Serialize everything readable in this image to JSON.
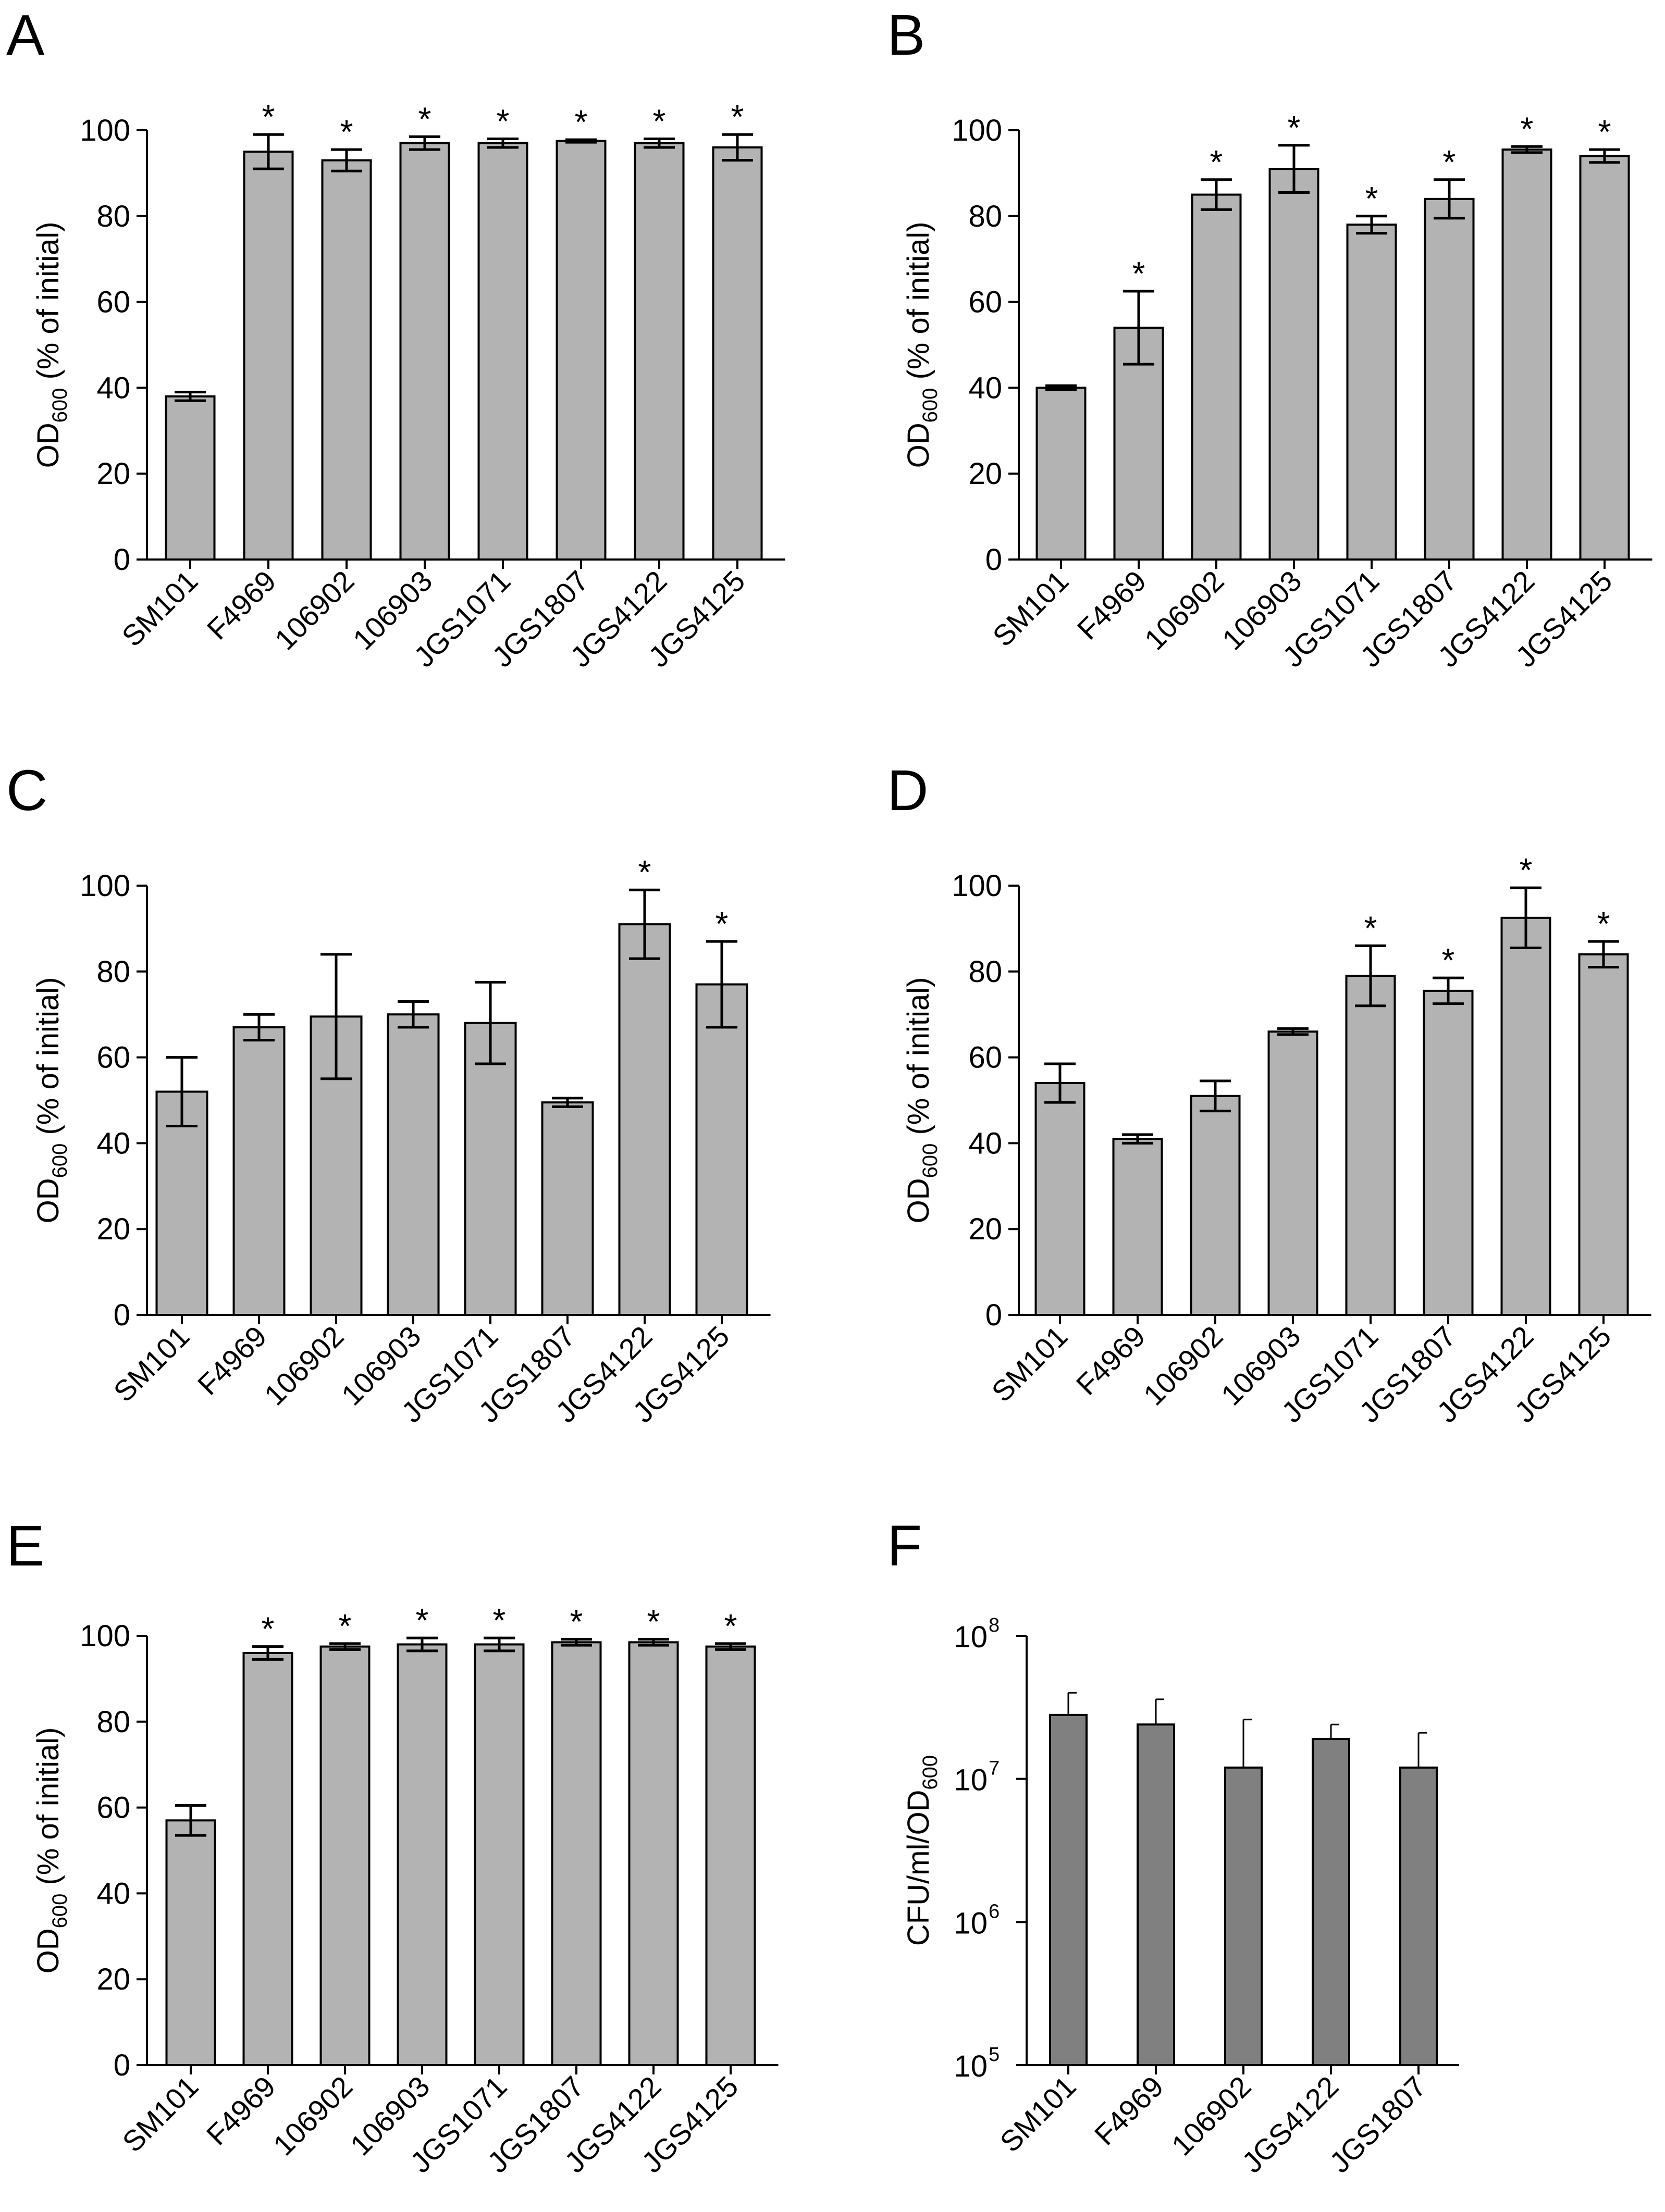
{
  "chart_data": [
    {
      "panel": "A",
      "type": "bar",
      "ylabel_main": "OD",
      "ylabel_sub": "600",
      "ylabel_rest": " (% of initial)",
      "ylim": [
        0,
        100
      ],
      "yticks": [
        0,
        20,
        40,
        60,
        80,
        100
      ],
      "categories": [
        "SM101",
        "F4969",
        "106902",
        "106903",
        "JGS1071",
        "JGS1807",
        "JGS4122",
        "JGS4125"
      ],
      "values": [
        38,
        95,
        93,
        97,
        97,
        97.5,
        97,
        96
      ],
      "errors": [
        1,
        4,
        2.5,
        1.5,
        1,
        0.3,
        1,
        3
      ],
      "significant": [
        false,
        true,
        true,
        true,
        true,
        true,
        true,
        true
      ],
      "marker": "*",
      "bar_color": "#b3b3b3"
    },
    {
      "panel": "B",
      "type": "bar",
      "ylabel_main": "OD",
      "ylabel_sub": "600",
      "ylabel_rest": " (% of initial)",
      "ylim": [
        0,
        100
      ],
      "yticks": [
        0,
        20,
        40,
        60,
        80,
        100
      ],
      "categories": [
        "SM101",
        "F4969",
        "106902",
        "106903",
        "JGS1071",
        "JGS1807",
        "JGS4122",
        "JGS4125"
      ],
      "values": [
        40,
        54,
        85,
        91,
        78,
        84,
        95.5,
        94
      ],
      "errors": [
        0.5,
        8.5,
        3.5,
        5.5,
        2,
        4.5,
        0.7,
        1.5
      ],
      "significant": [
        false,
        true,
        true,
        true,
        true,
        true,
        true,
        true
      ],
      "marker": "*",
      "bar_color": "#b3b3b3"
    },
    {
      "panel": "C",
      "type": "bar",
      "ylabel_main": "OD",
      "ylabel_sub": "600",
      "ylabel_rest": " (% of initial)",
      "ylim": [
        0,
        100
      ],
      "yticks": [
        0,
        20,
        40,
        60,
        80,
        100
      ],
      "categories": [
        "SM101",
        "F4969",
        "106902",
        "106903",
        "JGS1071",
        "JGS1807",
        "JGS4122",
        "JGS4125"
      ],
      "values": [
        52,
        67,
        69.5,
        70,
        68,
        49.5,
        91,
        77
      ],
      "errors": [
        8,
        3,
        14.5,
        3,
        9.5,
        1,
        8,
        10
      ],
      "significant": [
        false,
        false,
        false,
        false,
        false,
        false,
        true,
        true
      ],
      "marker": "*",
      "bar_color": "#b3b3b3"
    },
    {
      "panel": "D",
      "type": "bar",
      "ylabel_main": "OD",
      "ylabel_sub": "600",
      "ylabel_rest": " (% of initial)",
      "ylim": [
        0,
        100
      ],
      "yticks": [
        0,
        20,
        40,
        60,
        80,
        100
      ],
      "categories": [
        "SM101",
        "F4969",
        "106902",
        "106903",
        "JGS1071",
        "JGS1807",
        "JGS4122",
        "JGS4125"
      ],
      "values": [
        54,
        41,
        51,
        66,
        79,
        75.5,
        92.5,
        84
      ],
      "errors": [
        4.5,
        1,
        3.5,
        0.7,
        7,
        3,
        7,
        3
      ],
      "significant": [
        false,
        false,
        false,
        false,
        true,
        true,
        true,
        true
      ],
      "marker": "*",
      "bar_color": "#b3b3b3"
    },
    {
      "panel": "E",
      "type": "bar",
      "ylabel_main": "OD",
      "ylabel_sub": "600",
      "ylabel_rest": " (% of initial)",
      "ylim": [
        0,
        100
      ],
      "yticks": [
        0,
        20,
        40,
        60,
        80,
        100
      ],
      "categories": [
        "SM101",
        "F4969",
        "106902",
        "106903",
        "JGS1071",
        "JGS1807",
        "JGS4122",
        "JGS4125"
      ],
      "values": [
        57,
        96,
        97.5,
        98,
        98,
        98.5,
        98.5,
        97.5
      ],
      "errors": [
        3.5,
        1.5,
        0.7,
        1.5,
        1.5,
        0.7,
        0.7,
        0.7
      ],
      "significant": [
        false,
        true,
        true,
        true,
        true,
        true,
        true,
        true
      ],
      "marker": "*",
      "bar_color": "#b3b3b3"
    },
    {
      "panel": "F",
      "type": "bar",
      "scale": "log",
      "ylabel_main": "CFU/ml/OD",
      "ylabel_sub": "600",
      "ylabel_rest": "",
      "ylim": [
        100000,
        100000000
      ],
      "yticks": [
        {
          "base": "10",
          "exp": "5",
          "value": 100000
        },
        {
          "base": "10",
          "exp": "6",
          "value": 1000000
        },
        {
          "base": "10",
          "exp": "7",
          "value": 10000000
        },
        {
          "base": "10",
          "exp": "8",
          "value": 100000000
        }
      ],
      "categories": [
        "SM101",
        "F4969",
        "106902",
        "JGS4122",
        "JGS1807"
      ],
      "values": [
        28000000,
        24000000,
        12000000,
        19000000,
        12000000
      ],
      "error_upper": [
        40000000,
        36000000,
        26000000,
        24000000,
        21000000
      ],
      "bar_color": "#808080"
    }
  ]
}
